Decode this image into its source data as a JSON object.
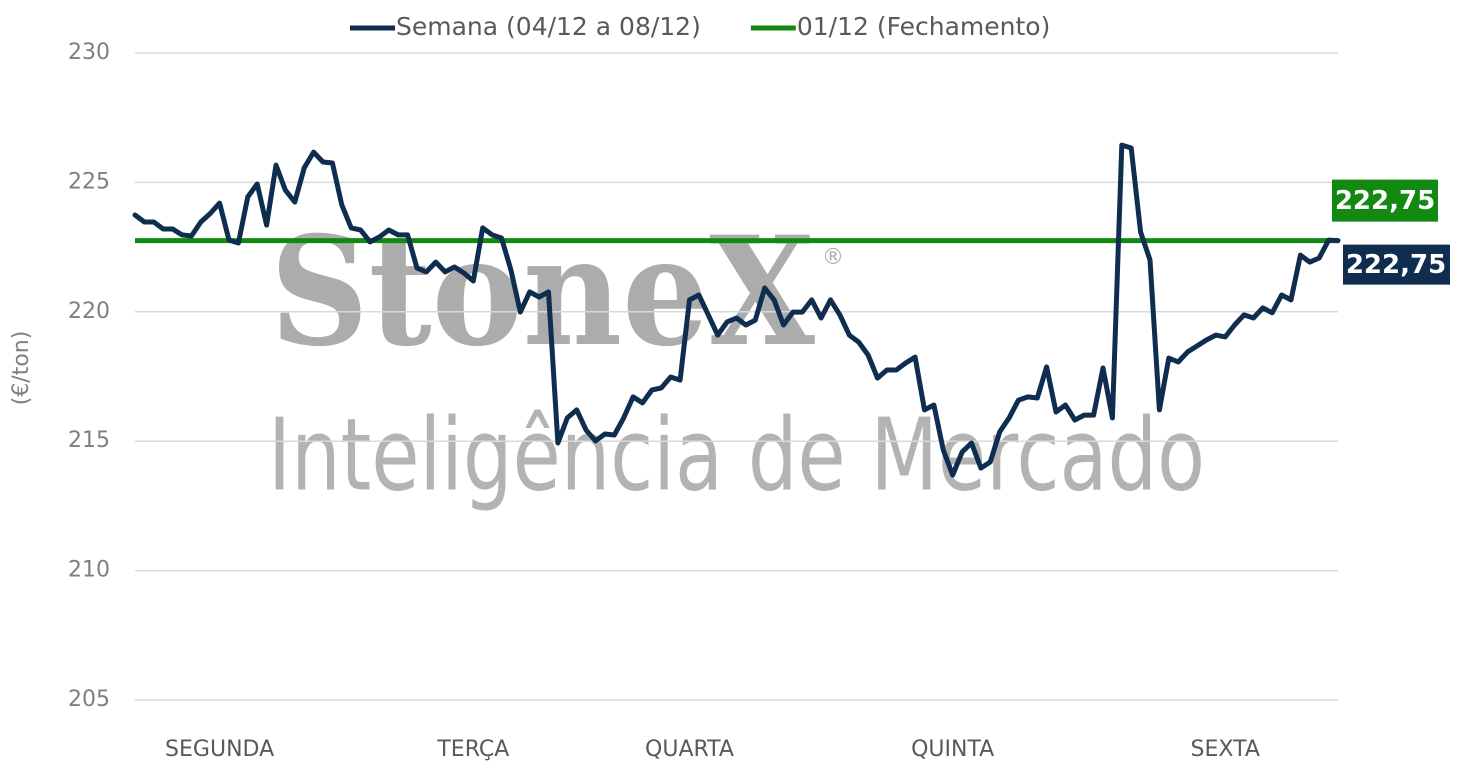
{
  "chart_data": {
    "type": "line",
    "y_label": "(€/ton)",
    "watermark": {
      "brand": "StoneX",
      "mark": "®",
      "sub": "Inteligência de Mercado"
    },
    "categories": [
      null,
      null,
      null,
      null,
      null,
      null,
      null,
      null,
      null,
      "SEGUNDA",
      null,
      null,
      null,
      null,
      null,
      null,
      null,
      null,
      null,
      null,
      null,
      null,
      null,
      null,
      null,
      null,
      null,
      null,
      null,
      null,
      null,
      null,
      null,
      null,
      null,
      null,
      "TERÇA",
      null,
      null,
      null,
      null,
      null,
      null,
      null,
      null,
      null,
      null,
      null,
      null,
      null,
      null,
      null,
      null,
      null,
      null,
      null,
      null,
      null,
      null,
      "QUARTA",
      null,
      null,
      null,
      null,
      null,
      null,
      null,
      null,
      null,
      null,
      null,
      null,
      null,
      null,
      null,
      null,
      null,
      null,
      null,
      null,
      null,
      null,
      null,
      null,
      null,
      null,
      null,
      "QUINTA",
      null,
      null,
      null,
      null,
      null,
      null,
      null,
      null,
      null,
      null,
      null,
      null,
      null,
      null,
      null,
      null,
      null,
      null,
      null,
      null,
      null,
      null,
      null,
      null,
      null,
      null,
      null,
      null,
      "SEXTA",
      null,
      null,
      null,
      null,
      null,
      null,
      null,
      null,
      null,
      null,
      null,
      null
    ],
    "series": [
      {
        "name": "Semana (04/12 a 08/12)",
        "color": "#0e2d4f",
        "values": [
          223.74,
          223.47,
          223.47,
          223.2,
          223.2,
          222.97,
          222.93,
          223.47,
          223.8,
          224.2,
          222.77,
          222.66,
          224.44,
          224.94,
          223.35,
          225.67,
          224.7,
          224.24,
          225.56,
          226.17,
          225.79,
          225.75,
          224.13,
          223.24,
          223.16,
          222.7,
          222.89,
          223.16,
          222.97,
          222.97,
          221.69,
          221.54,
          221.92,
          221.54,
          221.73,
          221.5,
          221.19,
          223.24,
          222.97,
          222.85,
          221.62,
          219.99,
          220.77,
          220.57,
          220.77,
          214.93,
          215.9,
          216.21,
          215.43,
          215.01,
          215.28,
          215.24,
          215.9,
          216.71,
          216.48,
          216.98,
          217.06,
          217.48,
          217.36,
          220.46,
          220.65,
          219.88,
          219.1,
          219.61,
          219.76,
          219.49,
          219.68,
          220.92,
          220.46,
          219.49,
          219.99,
          219.99,
          220.46,
          219.76,
          220.46,
          219.88,
          219.1,
          218.83,
          218.33,
          217.44,
          217.75,
          217.75,
          218.02,
          218.25,
          216.21,
          216.4,
          214.66,
          213.69,
          214.58,
          214.93,
          213.96,
          214.2,
          215.36,
          215.9,
          216.59,
          216.71,
          216.67,
          217.87,
          216.13,
          216.4,
          215.82,
          216.01,
          216.01,
          217.83,
          215.9,
          226.44,
          226.33,
          223.08,
          222.0,
          216.21,
          218.21,
          218.06,
          218.45,
          218.68,
          218.91,
          219.1,
          219.03,
          219.49,
          219.88,
          219.76,
          220.15,
          219.96,
          220.65,
          220.46,
          222.19,
          221.92,
          222.08,
          222.77,
          222.75
        ],
        "end_label": "222,75"
      }
    ],
    "reference_line": {
      "name": "01/12 (Fechamento)",
      "color": "#128a12",
      "value": 222.75,
      "value_label": "222,75"
    },
    "ylim": [
      205,
      230
    ],
    "yticks": [
      205,
      210,
      215,
      220,
      225,
      230
    ],
    "grid": true
  }
}
